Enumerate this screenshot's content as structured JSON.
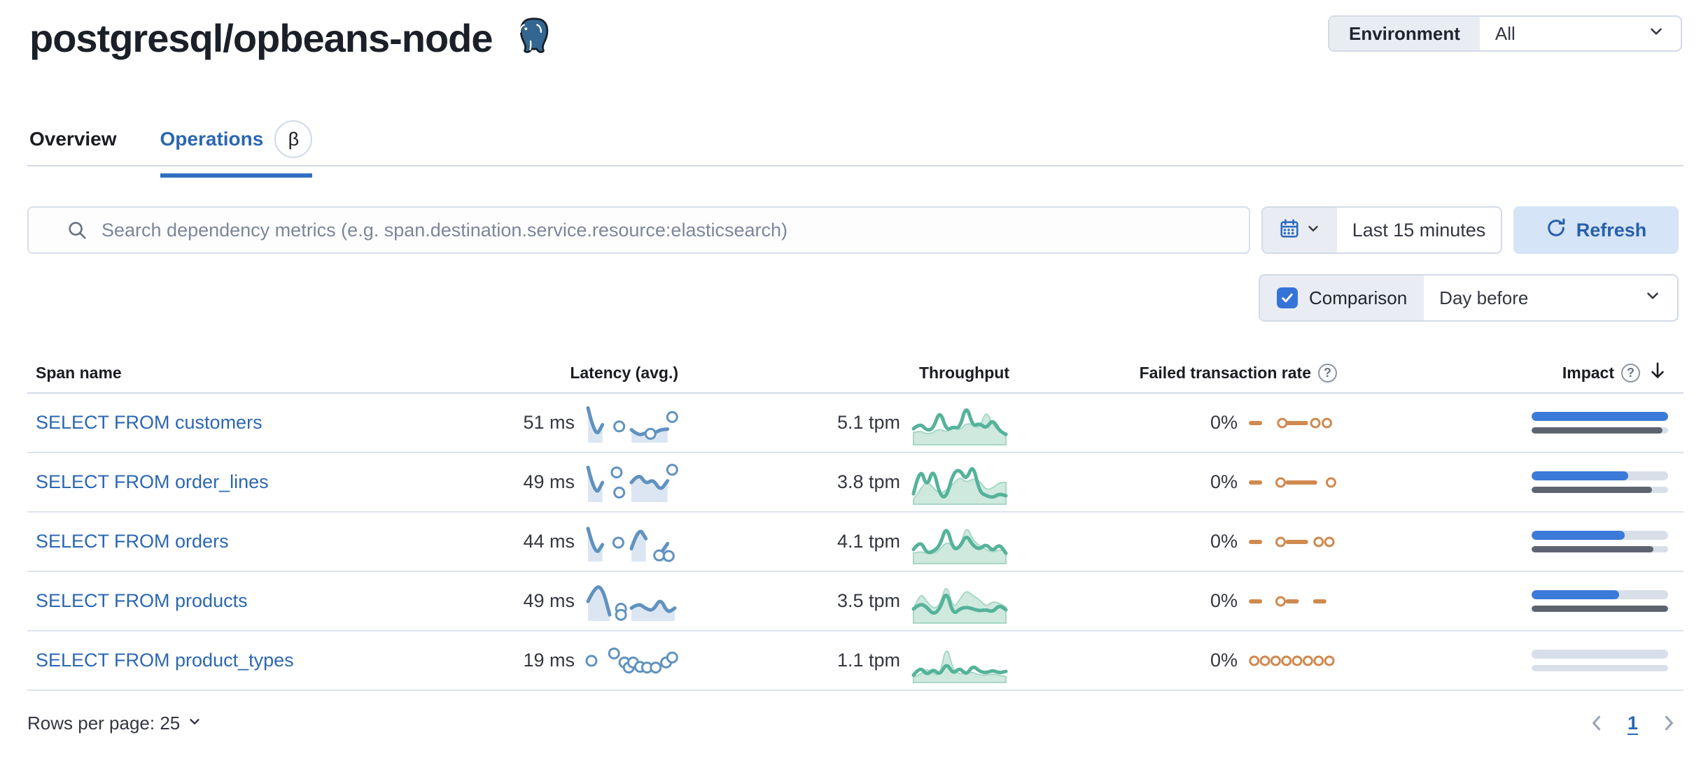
{
  "header": {
    "title": "postgresql/opbeans-node",
    "environment_label": "Environment",
    "environment_value": "All"
  },
  "tabs": [
    {
      "label": "Overview"
    },
    {
      "label": "Operations",
      "badge": "β"
    }
  ],
  "toolbar": {
    "search_placeholder": "Search dependency metrics (e.g. span.destination.service.resource:elasticsearch)",
    "time_range": "Last 15 minutes",
    "refresh_label": "Refresh",
    "comparison_label": "Comparison",
    "comparison_checked": true,
    "comparison_value": "Day before"
  },
  "table": {
    "columns": {
      "span_name": "Span name",
      "latency": "Latency (avg.)",
      "throughput": "Throughput",
      "failed_rate": "Failed transaction rate",
      "impact": "Impact"
    },
    "sorted_by": "Impact",
    "sort_direction": "desc",
    "rows": [
      {
        "name": "SELECT FROM customers",
        "latency": "51 ms",
        "throughput": "5.1 tpm",
        "failed_rate": "0%",
        "impact_pct": 100,
        "impact_prev_pct": 96,
        "latency_spark": {
          "line": [
            0.95,
            0.05,
            0.45,
            null,
            null,
            null,
            0.3,
            0.12,
            0.22,
            0.18,
            0.3,
            0.32,
            null
          ],
          "dots": [
            [
              0.36,
              0.4
            ],
            [
              0.72,
              0.18
            ],
            [
              0.97,
              0.68
            ]
          ]
        },
        "throughput_spark": {
          "line": [
            0.35,
            0.5,
            0.3,
            0.35,
            0.85,
            0.3,
            0.4,
            0.35,
            1.0,
            0.4,
            0.5,
            0.35,
            0.6,
            0.3,
            0.2
          ],
          "comp": [
            0.25,
            0.3,
            0.2,
            0.25,
            0.35,
            0.25,
            0.4,
            0.3,
            0.5,
            0.45,
            0.35,
            0.85,
            0.45,
            0.3,
            0.15
          ]
        },
        "failed_spark": {
          "line": [
            0.5,
            0.5,
            null,
            null,
            0.5,
            0.5,
            0.5,
            null,
            null,
            null
          ],
          "dots": [
            [
              0.38,
              0.5
            ],
            [
              0.78,
              0.5
            ],
            [
              0.92,
              0.5
            ]
          ]
        }
      },
      {
        "name": "SELECT FROM order_lines",
        "latency": "49 ms",
        "throughput": "3.8 tpm",
        "failed_rate": "0%",
        "impact_pct": 71,
        "impact_prev_pct": 88,
        "latency_spark": {
          "line": [
            0.95,
            0.08,
            0.5,
            null,
            null,
            null,
            0.5,
            0.78,
            0.45,
            0.6,
            0.25,
            0.55,
            null
          ],
          "dots": [
            [
              0.33,
              0.8
            ],
            [
              0.36,
              0.2
            ],
            [
              0.97,
              0.88
            ]
          ]
        },
        "throughput_spark": {
          "line": [
            0.2,
            0.95,
            0.35,
            0.9,
            0.15,
            0.1,
            0.75,
            0.85,
            0.55,
            1.0,
            0.25,
            0.15,
            0.1,
            0.2,
            0.15
          ],
          "comp": [
            0.05,
            0.3,
            0.55,
            0.35,
            0.2,
            0.3,
            0.45,
            0.65,
            0.5,
            0.6,
            0.55,
            0.3,
            0.35,
            0.5,
            0.5
          ]
        },
        "failed_spark": {
          "line": [
            0.5,
            0.5,
            null,
            null,
            0.5,
            0.5,
            0.5,
            0.5,
            null,
            null
          ],
          "dots": [
            [
              0.36,
              0.5
            ],
            [
              0.97,
              0.5
            ]
          ]
        }
      },
      {
        "name": "SELECT FROM orders",
        "latency": "44 ms",
        "throughput": "4.1 tpm",
        "failed_rate": "0%",
        "impact_pct": 68,
        "impact_prev_pct": 89,
        "latency_spark": {
          "line": [
            0.9,
            0.08,
            0.42,
            null,
            null,
            null,
            0.3,
            0.95,
            0.6,
            null,
            0.15,
            0.45,
            null
          ],
          "dots": [
            [
              0.35,
              0.48
            ],
            [
              0.82,
              0.1
            ],
            [
              0.93,
              0.08
            ]
          ]
        },
        "throughput_spark": {
          "line": [
            0.3,
            0.55,
            0.2,
            0.25,
            0.4,
            0.95,
            0.3,
            0.35,
            0.7,
            0.4,
            0.3,
            0.45,
            0.25,
            0.45,
            0.2
          ],
          "comp": [
            0.2,
            0.25,
            0.2,
            0.18,
            0.3,
            0.5,
            0.4,
            0.3,
            0.95,
            0.55,
            0.4,
            0.3,
            0.22,
            0.3,
            0.25
          ]
        },
        "failed_spark": {
          "line": [
            0.5,
            0.5,
            null,
            null,
            0.5,
            0.5,
            0.5,
            null,
            null,
            null
          ],
          "dots": [
            [
              0.36,
              0.5
            ],
            [
              0.82,
              0.5
            ],
            [
              0.95,
              0.5
            ]
          ]
        }
      },
      {
        "name": "SELECT FROM products",
        "latency": "49 ms",
        "throughput": "3.5 tpm",
        "failed_rate": "0%",
        "impact_pct": 64,
        "impact_prev_pct": 100,
        "latency_spark": {
          "line": [
            0.5,
            0.95,
            0.9,
            0.1,
            null,
            null,
            0.3,
            0.45,
            0.28,
            0.22,
            0.6,
            0.15,
            0.3
          ],
          "dots": [
            [
              0.38,
              0.28
            ],
            [
              0.38,
              0.1
            ]
          ]
        },
        "throughput_spark": {
          "line": [
            0.3,
            0.45,
            0.35,
            0.15,
            0.3,
            0.8,
            0.15,
            0.3,
            0.35,
            0.3,
            0.25,
            0.28,
            0.22,
            0.4,
            0.28
          ],
          "comp": [
            0.28,
            0.75,
            0.5,
            0.3,
            0.4,
            1.0,
            0.3,
            0.55,
            0.8,
            0.65,
            0.55,
            0.35,
            0.5,
            0.45,
            0.35
          ]
        },
        "failed_spark": {
          "line": [
            0.5,
            0.5,
            null,
            null,
            0.5,
            0.5,
            null,
            0.5,
            0.5,
            null
          ],
          "dots": [
            [
              0.36,
              0.5
            ]
          ]
        }
      },
      {
        "name": "SELECT FROM product_types",
        "latency": "19 ms",
        "throughput": "1.1 tpm",
        "failed_rate": "0%",
        "impact_pct": 0,
        "impact_prev_pct": 0,
        "latency_spark": {
          "line": [],
          "dots": [
            [
              0.04,
              0.5
            ],
            [
              0.3,
              0.72
            ],
            [
              0.42,
              0.45
            ],
            [
              0.47,
              0.3
            ],
            [
              0.52,
              0.45
            ],
            [
              0.6,
              0.32
            ],
            [
              0.68,
              0.3
            ],
            [
              0.78,
              0.3
            ],
            [
              0.9,
              0.45
            ],
            [
              0.97,
              0.6
            ]
          ]
        },
        "throughput_spark": {
          "line": [
            0.12,
            0.35,
            0.12,
            0.28,
            0.12,
            0.45,
            0.15,
            0.32,
            0.12,
            0.38,
            0.22,
            0.18,
            0.25,
            0.18,
            0.22
          ],
          "comp": [
            0.08,
            0.12,
            0.3,
            0.15,
            0.12,
            0.95,
            0.25,
            0.15,
            0.18,
            0.2,
            0.12,
            0.12,
            0.15,
            0.12,
            0.08
          ]
        },
        "failed_spark": {
          "line": [],
          "dots": [
            [
              0.04,
              0.5
            ],
            [
              0.17,
              0.5
            ],
            [
              0.3,
              0.5
            ],
            [
              0.43,
              0.5
            ],
            [
              0.56,
              0.5
            ],
            [
              0.69,
              0.5
            ],
            [
              0.82,
              0.5
            ],
            [
              0.95,
              0.5
            ]
          ]
        }
      }
    ]
  },
  "footer": {
    "rows_per_page": "Rows per page: 25",
    "page": "1"
  },
  "colors": {
    "link_blue": "#2c67b3",
    "latency_spark": "#6092c0",
    "latency_fill": "#dce6f2",
    "throughput_spark": "#54b399",
    "throughput_comp_fill": "#cfe9df",
    "throughput_comp_stroke": "#a7d7c5",
    "failed_spark": "#d0894f",
    "impact_bar": "#3c7ad9",
    "impact_prev_bar": "#5e646f",
    "impact_track": "#d9dfe9"
  }
}
